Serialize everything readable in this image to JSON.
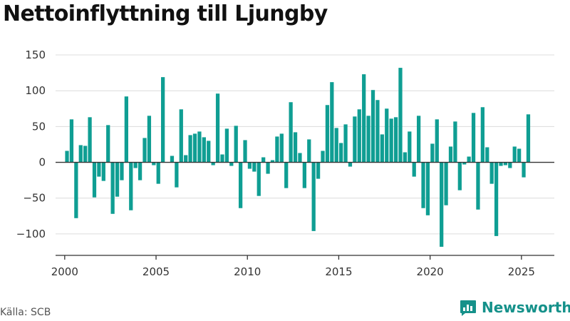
{
  "header": {
    "title": "Nettoinflyttning till Ljungby"
  },
  "footer": {
    "source": "Källa: SCB",
    "brand": "Newsworthy"
  },
  "colors": {
    "bar": "#0f9e93",
    "axis": "#333333",
    "grid": "#dcdcdc",
    "brand": "#15918a"
  },
  "chart_data": {
    "type": "bar",
    "title": "Nettoinflyttning till Ljungby",
    "xlabel": "",
    "ylabel": "",
    "ylim": [
      -130,
      155
    ],
    "yticks": [
      150,
      100,
      50,
      0,
      -50,
      -100
    ],
    "ytick_labels": [
      "150",
      "100",
      "50",
      "0",
      "−50",
      "−100"
    ],
    "xlim": [
      1999.5,
      2026.8
    ],
    "xticks": [
      2000,
      2005,
      2010,
      2015,
      2020,
      2025
    ],
    "xtick_labels": [
      "2000",
      "2005",
      "2010",
      "2015",
      "2020",
      "2025"
    ],
    "grid": true,
    "legend": "none",
    "start_year": 2000,
    "periods_per_year": 4,
    "values": [
      16,
      60,
      -78,
      24,
      23,
      63,
      -49,
      -20,
      -26,
      52,
      -72,
      -48,
      -25,
      92,
      -67,
      -8,
      -25,
      34,
      65,
      -4,
      -30,
      119,
      0,
      9,
      -35,
      74,
      10,
      38,
      40,
      43,
      35,
      30,
      -4,
      96,
      11,
      47,
      -5,
      51,
      -64,
      31,
      -9,
      -13,
      -47,
      7,
      -16,
      3,
      36,
      40,
      -36,
      84,
      42,
      13,
      -36,
      32,
      -96,
      -23,
      16,
      80,
      112,
      48,
      27,
      53,
      -6,
      64,
      74,
      123,
      65,
      101,
      87,
      39,
      75,
      61,
      63,
      132,
      14,
      43,
      -20,
      65,
      -64,
      -74,
      26,
      60,
      -118,
      -60,
      22,
      57,
      -39,
      -3,
      8,
      69,
      -66,
      77,
      21,
      -30,
      -103,
      -5,
      -4,
      -8,
      22,
      19,
      -21,
      67
    ]
  }
}
